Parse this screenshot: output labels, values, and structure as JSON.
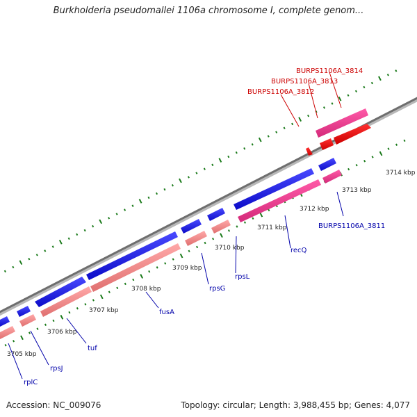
{
  "title": "Burkholderia pseudomallei 1106a chromosome I, complete genom...",
  "footer": {
    "accession": "Accession: NC_009076",
    "topology": "Topology: circular; Length: 3,988,455 bp; Genes: 4,077"
  },
  "colors": {
    "backbone": "#8a8a8a",
    "tick_major": "#1a7a1a",
    "tick_minor": "#1a7a1a",
    "gene_blue": "#1a1ae0",
    "gene_pink": "#e8388c",
    "gene_salmon": "#f08a8a",
    "gene_red": "#ee1111",
    "label_blue": "#0000aa",
    "label_red": "#cc0000"
  },
  "ticks": [
    "3705 kbp",
    "3706 kbp",
    "3707 kbp",
    "3708 kbp",
    "3709 kbp",
    "3710 kbp",
    "3711 kbp",
    "3712 kbp",
    "3713 kbp",
    "3714 kbp"
  ],
  "genes_lower": [
    "rplC",
    "rpsJ",
    "tuf",
    "fusA",
    "rpsG",
    "rpsL",
    "recQ",
    "BURPS1106A_3811"
  ],
  "genes_upper": [
    "BURPS1106A_3812",
    "BURPS1106A_3813",
    "BURPS1106A_3814"
  ]
}
